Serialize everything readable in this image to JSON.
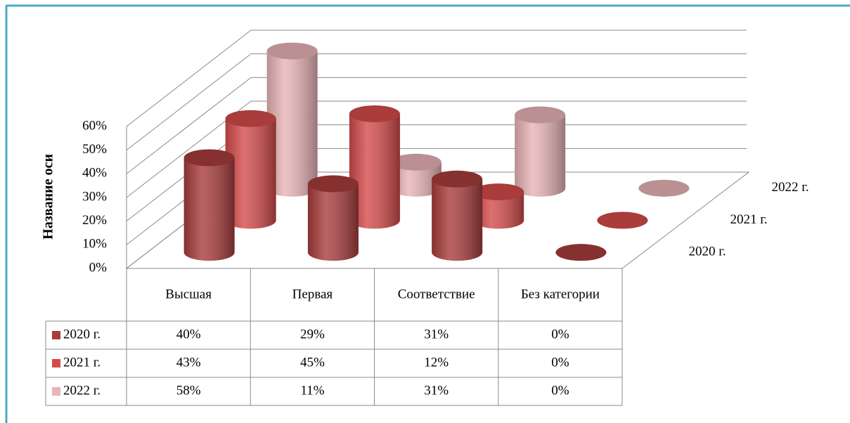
{
  "chart_data": {
    "type": "bar3d",
    "y_label": "Название оси",
    "categories": [
      "Высшая",
      "Первая",
      "Соответствие",
      "Без категории"
    ],
    "series": [
      {
        "name": "2020 г.",
        "color": "#a83c3c",
        "values": [
          40,
          29,
          31,
          0
        ],
        "value_labels": [
          "40%",
          "29%",
          "31%",
          "0%"
        ]
      },
      {
        "name": "2021 г.",
        "color": "#d44b4b",
        "values": [
          43,
          45,
          12,
          0
        ],
        "value_labels": [
          "43%",
          "45%",
          "12%",
          "0%"
        ]
      },
      {
        "name": "2022 г.",
        "color": "#e8b4b6",
        "values": [
          58,
          11,
          31,
          0
        ],
        "value_labels": [
          "58%",
          "11%",
          "31%",
          "0%"
        ]
      }
    ],
    "ylim": [
      0,
      60
    ],
    "yticks": [
      {
        "value": 0,
        "label": "0%"
      },
      {
        "value": 10,
        "label": "10%"
      },
      {
        "value": 20,
        "label": "20%"
      },
      {
        "value": 30,
        "label": "30%"
      },
      {
        "value": 40,
        "label": "40%"
      },
      {
        "value": 50,
        "label": "50%"
      },
      {
        "value": 60,
        "label": "60%"
      }
    ],
    "grid": true
  }
}
